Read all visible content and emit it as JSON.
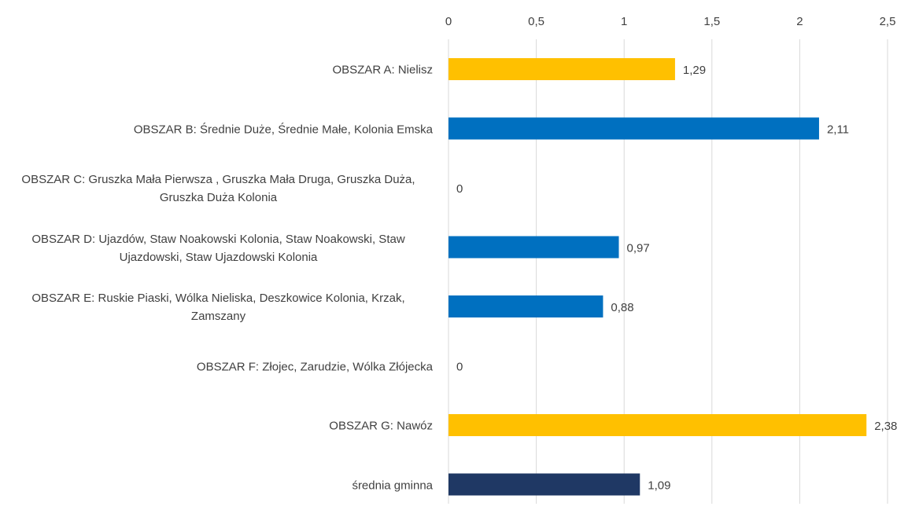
{
  "chart_data": {
    "type": "hbar",
    "categories": [
      "OBSZAR A: Nielisz",
      "OBSZAR B: Średnie Duże, Średnie Małe, Kolonia Emska",
      "OBSZAR C: Gruszka Mała Pierwsza , Gruszka Mała Druga, Gruszka Duża, Gruszka Duża Kolonia",
      "OBSZAR D:  Ujazdów, Staw Noakowski Kolonia, Staw Noakowski, Staw Ujazdowski, Staw Ujazdowski Kolonia",
      "OBSZAR E: Ruskie Piaski, Wólka Nieliska, Deszkowice Kolonia, Krzak, Zamszany",
      "OBSZAR F: Złojec, Zarudzie, Wólka Złójecka",
      "OBSZAR G: Nawóz",
      "średnia gminna"
    ],
    "values": [
      1.29,
      2.11,
      0,
      0.97,
      0.88,
      0,
      2.38,
      1.09
    ],
    "value_labels": [
      "1,29",
      "2,11",
      "0",
      "0,97",
      "0,88",
      "0",
      "2,38",
      "1,09"
    ],
    "colors": [
      "#ffc000",
      "#0070c0",
      "#0070c0",
      "#0070c0",
      "#0070c0",
      "#0070c0",
      "#ffc000",
      "#1f3864"
    ],
    "xlim": [
      0,
      2.5
    ],
    "xticks": [
      0,
      {
        "value": 0.5,
        "label": "0,5"
      },
      1,
      {
        "value": 1.5,
        "label": "1,5"
      },
      2,
      {
        "value": 2.5,
        "label": "2,5"
      }
    ],
    "grid": true
  }
}
